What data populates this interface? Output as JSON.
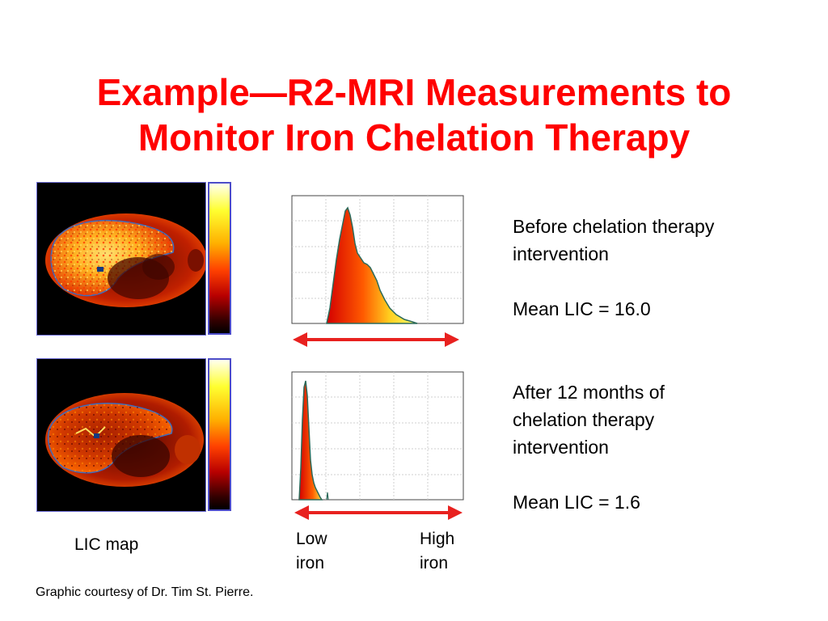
{
  "title": {
    "line1": "Example—R2-MRI Measurements to",
    "line2": "Monitor Iron Chelation Therapy"
  },
  "before": {
    "description": "Before chelation therapy\nintervention",
    "mean": "Mean LIC = 16.0"
  },
  "after": {
    "description": "After 12 months of\nchelation therapy\nintervention",
    "mean": "Mean LIC = 1.6"
  },
  "labels": {
    "lic_map": "LIC map",
    "low_iron": "Low\niron",
    "high_iron": "High\niron"
  },
  "credit": "Graphic courtesy of Dr. Tim St. Pierre.",
  "colors": {
    "title": "#ff0000",
    "arrow": "#e8211f",
    "border": "#4c4cc8"
  }
}
